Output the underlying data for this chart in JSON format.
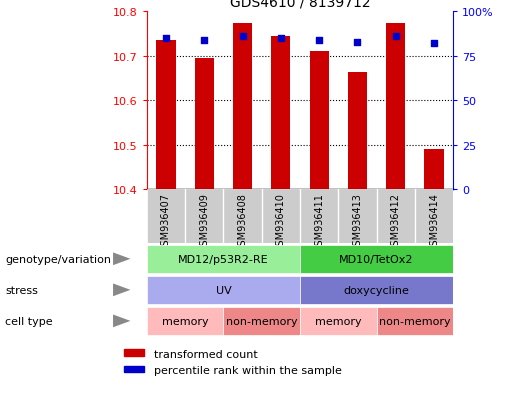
{
  "title": "GDS4610 / 8139712",
  "samples": [
    "GSM936407",
    "GSM936409",
    "GSM936408",
    "GSM936410",
    "GSM936411",
    "GSM936413",
    "GSM936412",
    "GSM936414"
  ],
  "bar_values": [
    10.735,
    10.695,
    10.775,
    10.745,
    10.71,
    10.665,
    10.775,
    10.49
  ],
  "percentile_values": [
    85,
    84,
    86,
    85,
    84,
    83,
    86,
    82
  ],
  "bar_bottom": 10.4,
  "ylim": [
    10.4,
    10.8
  ],
  "y2lim": [
    0,
    100
  ],
  "yticks": [
    10.4,
    10.5,
    10.6,
    10.7,
    10.8
  ],
  "y2ticks": [
    0,
    25,
    50,
    75,
    100
  ],
  "bar_color": "#cc0000",
  "dot_color": "#0000cc",
  "annotation_rows": [
    {
      "label": "genotype/variation",
      "groups": [
        {
          "text": "MD12/p53R2-RE",
          "span": [
            0,
            4
          ],
          "color": "#99ee99"
        },
        {
          "text": "MD10/TetOx2",
          "span": [
            4,
            8
          ],
          "color": "#44cc44"
        }
      ]
    },
    {
      "label": "stress",
      "groups": [
        {
          "text": "UV",
          "span": [
            0,
            4
          ],
          "color": "#aaaaee"
        },
        {
          "text": "doxycycline",
          "span": [
            4,
            8
          ],
          "color": "#7777cc"
        }
      ]
    },
    {
      "label": "cell type",
      "groups": [
        {
          "text": "memory",
          "span": [
            0,
            2
          ],
          "color": "#ffbbbb"
        },
        {
          "text": "non-memory",
          "span": [
            2,
            4
          ],
          "color": "#ee8888"
        },
        {
          "text": "memory",
          "span": [
            4,
            6
          ],
          "color": "#ffbbbb"
        },
        {
          "text": "non-memory",
          "span": [
            6,
            8
          ],
          "color": "#ee8888"
        }
      ]
    }
  ],
  "legend_items": [
    {
      "label": "transformed count",
      "color": "#cc0000"
    },
    {
      "label": "percentile rank within the sample",
      "color": "#0000cc"
    }
  ],
  "sample_box_color": "#cccccc",
  "border_color": "#888888"
}
